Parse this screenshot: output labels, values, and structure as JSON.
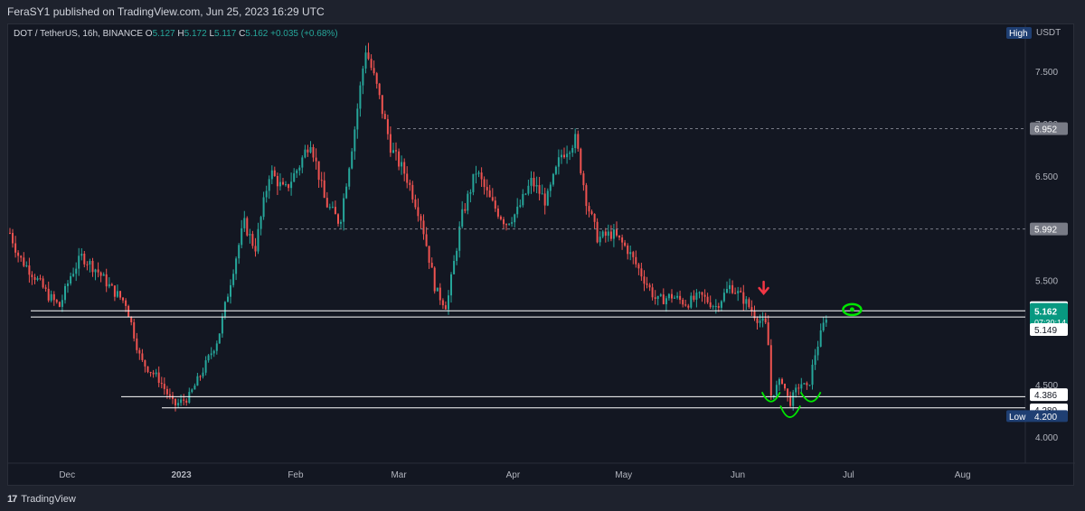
{
  "header": {
    "published": "FeraSY1 published on TradingView.com, Jun 25, 2023 16:29 UTC"
  },
  "legend": {
    "symbol": "DOT / TetherUS, 16h, BINANCE",
    "o_label": "O",
    "o_value": "5.127",
    "h_label": "H",
    "h_value": "5.172",
    "l_label": "L",
    "l_value": "5.117",
    "c_label": "C",
    "c_value": "5.162",
    "change": "+0.035 (+0.68%)"
  },
  "footer": {
    "brand": "TradingView",
    "logo_icon": "tradingview-logo-icon"
  },
  "colors": {
    "up": "#26a69a",
    "down": "#ef5350",
    "bg": "#131722",
    "text": "#b2b5be",
    "annotation_green": "#00e600",
    "annotation_red": "#f23645"
  },
  "chart_data": {
    "type": "candlestick",
    "currency_label": "USDT",
    "ylim": [
      3.75,
      7.95
    ],
    "y_ticks": [
      "7.500",
      "7.000",
      "6.500",
      "6.000",
      "5.500",
      "4.500",
      "4.000"
    ],
    "x_labels": [
      "Dec",
      "2023",
      "Feb",
      "Mar",
      "Apr",
      "May",
      "Jun",
      "Jul",
      "Aug"
    ],
    "high_tag": "High",
    "low_tag": "Low",
    "low_value": "4.200",
    "current_price": "5.162",
    "countdown": "07:30:14",
    "horizontal_levels": [
      {
        "value": "6.952",
        "style": "dashed"
      },
      {
        "value": "5.992",
        "style": "dashed"
      },
      {
        "value": "5.208",
        "style": "solid"
      },
      {
        "value": "5.149",
        "style": "solid"
      },
      {
        "value": "4.386",
        "style": "solid"
      },
      {
        "value": "4.280",
        "style": "solid"
      }
    ],
    "price_path": [
      [
        "2022-11-15",
        6.0
      ],
      [
        "2022-11-18",
        5.72
      ],
      [
        "2022-11-22",
        5.55
      ],
      [
        "2022-11-26",
        5.35
      ],
      [
        "2022-11-29",
        5.25
      ],
      [
        "2022-12-02",
        5.55
      ],
      [
        "2022-12-05",
        5.73
      ],
      [
        "2022-12-09",
        5.6
      ],
      [
        "2022-12-13",
        5.42
      ],
      [
        "2022-12-17",
        5.28
      ],
      [
        "2022-12-21",
        4.73
      ],
      [
        "2022-12-26",
        4.55
      ],
      [
        "2022-12-30",
        4.3
      ],
      [
        "2023-01-03",
        4.38
      ],
      [
        "2023-01-07",
        4.65
      ],
      [
        "2023-01-11",
        4.95
      ],
      [
        "2023-01-15",
        5.6
      ],
      [
        "2023-01-18",
        6.05
      ],
      [
        "2023-01-21",
        5.8
      ],
      [
        "2023-01-25",
        6.55
      ],
      [
        "2023-01-29",
        6.35
      ],
      [
        "2023-02-02",
        6.6
      ],
      [
        "2023-02-05",
        6.85
      ],
      [
        "2023-02-09",
        6.25
      ],
      [
        "2023-02-13",
        6.05
      ],
      [
        "2023-02-17",
        6.95
      ],
      [
        "2023-02-20",
        7.72
      ],
      [
        "2023-02-23",
        7.35
      ],
      [
        "2023-02-27",
        6.75
      ],
      [
        "2023-03-03",
        6.5
      ],
      [
        "2023-03-07",
        6.1
      ],
      [
        "2023-03-11",
        5.4
      ],
      [
        "2023-03-14",
        5.25
      ],
      [
        "2023-03-18",
        6.1
      ],
      [
        "2023-03-22",
        6.55
      ],
      [
        "2023-03-26",
        6.25
      ],
      [
        "2023-03-30",
        6.05
      ],
      [
        "2023-04-02",
        6.15
      ],
      [
        "2023-04-06",
        6.45
      ],
      [
        "2023-04-10",
        6.25
      ],
      [
        "2023-04-14",
        6.7
      ],
      [
        "2023-04-18",
        6.85
      ],
      [
        "2023-04-21",
        6.25
      ],
      [
        "2023-04-24",
        5.9
      ],
      [
        "2023-04-28",
        5.95
      ],
      [
        "2023-05-02",
        5.8
      ],
      [
        "2023-05-06",
        5.55
      ],
      [
        "2023-05-10",
        5.3
      ],
      [
        "2023-05-14",
        5.35
      ],
      [
        "2023-05-18",
        5.28
      ],
      [
        "2023-05-22",
        5.35
      ],
      [
        "2023-05-26",
        5.25
      ],
      [
        "2023-05-30",
        5.45
      ],
      [
        "2023-06-03",
        5.3
      ],
      [
        "2023-06-06",
        5.15
      ],
      [
        "2023-06-09",
        5.05
      ],
      [
        "2023-06-10",
        4.4
      ],
      [
        "2023-06-13",
        4.55
      ],
      [
        "2023-06-15",
        4.32
      ],
      [
        "2023-06-18",
        4.52
      ],
      [
        "2023-06-20",
        4.45
      ],
      [
        "2023-06-22",
        4.8
      ],
      [
        "2023-06-25",
        5.162
      ]
    ]
  }
}
